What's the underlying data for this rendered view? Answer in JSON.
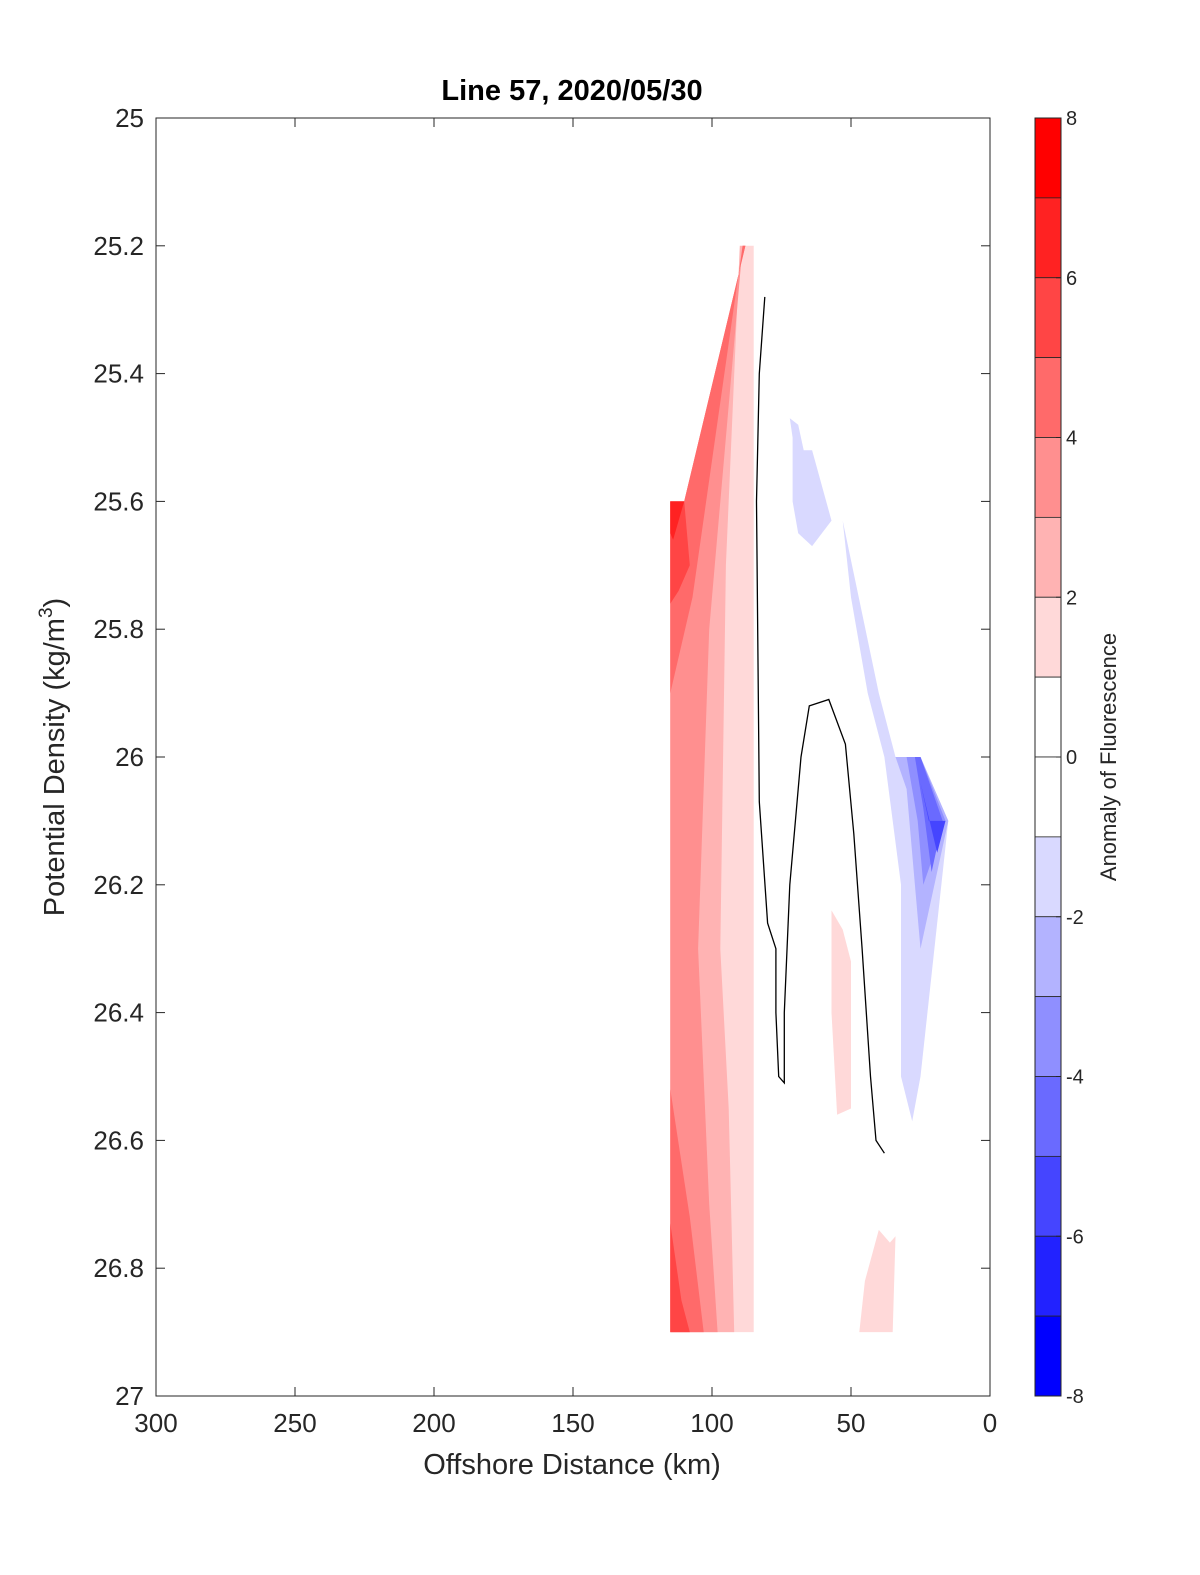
{
  "chart_data": {
    "type": "contour",
    "title": "Line 57, 2020/05/30",
    "xlabel": "Offshore Distance (km)",
    "ylabel_main": "Potential Density (kg/m",
    "ylabel_sup": "3",
    "ylabel_close": ")",
    "xlim": [
      300,
      0
    ],
    "ylim": [
      25,
      27
    ],
    "x_reversed": true,
    "y_reversed": true,
    "xticks": [
      300,
      250,
      200,
      150,
      100,
      50,
      0
    ],
    "xtick_labels": [
      "300",
      "250",
      "200",
      "150",
      "100",
      "50",
      "0"
    ],
    "yticks": [
      25,
      25.2,
      25.4,
      25.6,
      25.8,
      26,
      26.2,
      26.4,
      26.6,
      26.8,
      27
    ],
    "ytick_labels": [
      "25",
      "25.2",
      "25.4",
      "25.6",
      "25.8",
      "26",
      "26.2",
      "26.4",
      "26.6",
      "26.8",
      "27"
    ],
    "grid": false,
    "colorbar": {
      "label": "Anomaly of Fluorescence",
      "limits": [
        -8,
        8
      ],
      "ticks": [
        8,
        6,
        4,
        2,
        0,
        -2,
        -4,
        -6,
        -8
      ],
      "tick_labels": [
        "8",
        "6",
        "4",
        "2",
        "0",
        "-2",
        "-4",
        "-6",
        "-8"
      ],
      "levels": [
        {
          "range": [
            7,
            8
          ],
          "color": "#ff0000"
        },
        {
          "range": [
            6,
            7
          ],
          "color": "#ff2222"
        },
        {
          "range": [
            5,
            6
          ],
          "color": "#ff4545"
        },
        {
          "range": [
            4,
            5
          ],
          "color": "#ff6a6a"
        },
        {
          "range": [
            3,
            4
          ],
          "color": "#ff8f8f"
        },
        {
          "range": [
            2,
            3
          ],
          "color": "#ffb3b3"
        },
        {
          "range": [
            1,
            2
          ],
          "color": "#ffd9d9"
        },
        {
          "range": [
            0,
            1
          ],
          "color": "#ffffff"
        },
        {
          "range": [
            -1,
            0
          ],
          "color": "#ffffff"
        },
        {
          "range": [
            -2,
            -1
          ],
          "color": "#d9d9ff"
        },
        {
          "range": [
            -3,
            -2
          ],
          "color": "#b3b3ff"
        },
        {
          "range": [
            -4,
            -3
          ],
          "color": "#8f8fff"
        },
        {
          "range": [
            -5,
            -4
          ],
          "color": "#6a6aff"
        },
        {
          "range": [
            -6,
            -5
          ],
          "color": "#4545ff"
        },
        {
          "range": [
            -7,
            -6
          ],
          "color": "#2222ff"
        },
        {
          "range": [
            -8,
            -7
          ],
          "color": "#0000ff"
        }
      ]
    },
    "regions": [
      {
        "name": "red-band-outer",
        "level": 1.5,
        "color": "#ffd9d9",
        "points": [
          [
            115,
            25.6
          ],
          [
            110,
            25.6
          ],
          [
            88,
            25.2
          ],
          [
            85,
            25.2
          ],
          [
            85,
            26.9
          ],
          [
            115,
            26.9
          ]
        ]
      },
      {
        "name": "red-band-2",
        "level": 2.5,
        "color": "#ffb3b3",
        "points": [
          [
            115,
            25.6
          ],
          [
            110,
            25.6
          ],
          [
            88,
            25.2
          ],
          [
            90,
            25.2
          ],
          [
            95,
            25.7
          ],
          [
            97,
            26.3
          ],
          [
            94,
            26.55
          ],
          [
            92,
            26.9
          ],
          [
            115,
            26.9
          ]
        ]
      },
      {
        "name": "red-band-3",
        "level": 3.5,
        "color": "#ff8f8f",
        "points": [
          [
            115,
            25.6
          ],
          [
            110,
            25.6
          ],
          [
            88,
            25.2
          ],
          [
            89,
            25.2
          ],
          [
            101,
            25.8
          ],
          [
            105,
            26.3
          ],
          [
            101,
            26.7
          ],
          [
            98,
            26.9
          ],
          [
            115,
            26.9
          ]
        ]
      },
      {
        "name": "red-band-4",
        "level": 4.5,
        "color": "#ff6a6a",
        "points": [
          [
            115,
            25.6
          ],
          [
            110,
            25.6
          ],
          [
            88,
            25.2
          ],
          [
            89,
            25.2
          ],
          [
            107,
            25.75
          ],
          [
            115,
            25.9
          ],
          [
            115,
            26.52
          ],
          [
            108,
            26.72
          ],
          [
            103,
            26.9
          ],
          [
            115,
            26.9
          ]
        ]
      },
      {
        "name": "red-band-5",
        "level": 5.5,
        "color": "#ff4545",
        "points": [
          [
            115,
            25.6
          ],
          [
            110,
            25.6
          ],
          [
            108,
            25.7
          ],
          [
            112,
            25.74
          ],
          [
            115,
            25.76
          ],
          [
            115,
            26.73
          ],
          [
            111,
            26.85
          ],
          [
            108,
            26.9
          ],
          [
            115,
            26.9
          ]
        ]
      },
      {
        "name": "red-band-6",
        "level": 6.5,
        "color": "#ff2222",
        "points": [
          [
            115,
            25.6
          ],
          [
            110,
            25.6
          ],
          [
            114,
            25.66
          ],
          [
            115,
            25.65
          ]
        ]
      },
      {
        "name": "blue-patch-upper",
        "level": -1.5,
        "color": "#d9d9ff",
        "points": [
          [
            72,
            25.47
          ],
          [
            69,
            25.48
          ],
          [
            67,
            25.52
          ],
          [
            64,
            25.52
          ],
          [
            57,
            25.63
          ],
          [
            64,
            25.67
          ],
          [
            69,
            25.65
          ],
          [
            71,
            25.6
          ],
          [
            71,
            25.5
          ]
        ]
      },
      {
        "name": "blue-band-1",
        "level": -1.5,
        "color": "#d9d9ff",
        "points": [
          [
            53,
            25.63
          ],
          [
            40,
            25.9
          ],
          [
            34,
            26.0
          ],
          [
            25,
            26.0
          ],
          [
            15,
            26.1
          ],
          [
            25,
            26.5
          ],
          [
            28,
            26.57
          ],
          [
            32,
            26.5
          ],
          [
            32,
            26.2
          ],
          [
            38,
            26.0
          ],
          [
            44,
            25.9
          ],
          [
            50,
            25.75
          ]
        ]
      },
      {
        "name": "blue-band-2",
        "level": -2.5,
        "color": "#b3b3ff",
        "points": [
          [
            34,
            26.0
          ],
          [
            25,
            26.0
          ],
          [
            15,
            26.1
          ],
          [
            25,
            26.3
          ],
          [
            27,
            26.2
          ],
          [
            30,
            26.05
          ]
        ]
      },
      {
        "name": "blue-band-3",
        "level": -3.5,
        "color": "#8f8fff",
        "points": [
          [
            30,
            26.0
          ],
          [
            25,
            26.0
          ],
          [
            16,
            26.1
          ],
          [
            24,
            26.2
          ],
          [
            26,
            26.1
          ]
        ]
      },
      {
        "name": "blue-band-4",
        "level": -4.5,
        "color": "#6a6aff",
        "points": [
          [
            27,
            26.0
          ],
          [
            25,
            26.0
          ],
          [
            17,
            26.1
          ],
          [
            21,
            26.18
          ],
          [
            24,
            26.08
          ]
        ]
      },
      {
        "name": "blue-band-5",
        "level": -5.5,
        "color": "#4545ff",
        "points": [
          [
            25,
            26.04
          ],
          [
            22,
            26.1
          ],
          [
            16,
            26.1
          ],
          [
            19,
            26.15
          ]
        ]
      },
      {
        "name": "red-patch-mid",
        "level": 1.5,
        "color": "#ffd9d9",
        "points": [
          [
            57,
            26.24
          ],
          [
            53,
            26.27
          ],
          [
            50,
            26.32
          ],
          [
            50,
            26.55
          ],
          [
            55,
            26.56
          ],
          [
            57,
            26.4
          ],
          [
            57,
            26.3
          ]
        ]
      },
      {
        "name": "red-patch-bottom",
        "level": 1.5,
        "color": "#ffd9d9",
        "points": [
          [
            40,
            26.74
          ],
          [
            45,
            26.82
          ],
          [
            47,
            26.9
          ],
          [
            35,
            26.9
          ],
          [
            34,
            26.75
          ],
          [
            36,
            26.76
          ]
        ]
      }
    ],
    "contour_lines": [
      {
        "name": "zero-contour-west",
        "level": 0,
        "points": [
          [
            81,
            25.28
          ],
          [
            83,
            25.4
          ],
          [
            84,
            25.6
          ],
          [
            83,
            26.07
          ],
          [
            80,
            26.26
          ],
          [
            77,
            26.3
          ],
          [
            77,
            26.4
          ],
          [
            76,
            26.5
          ],
          [
            74,
            26.51
          ],
          [
            74,
            26.4
          ],
          [
            72,
            26.2
          ],
          [
            70,
            26.1
          ],
          [
            68,
            26.0
          ],
          [
            65,
            25.92
          ],
          [
            58,
            25.91
          ],
          [
            52,
            25.98
          ],
          [
            49,
            26.12
          ],
          [
            46,
            26.3
          ],
          [
            43,
            26.5
          ],
          [
            41,
            26.6
          ],
          [
            38,
            26.62
          ]
        ]
      }
    ]
  }
}
